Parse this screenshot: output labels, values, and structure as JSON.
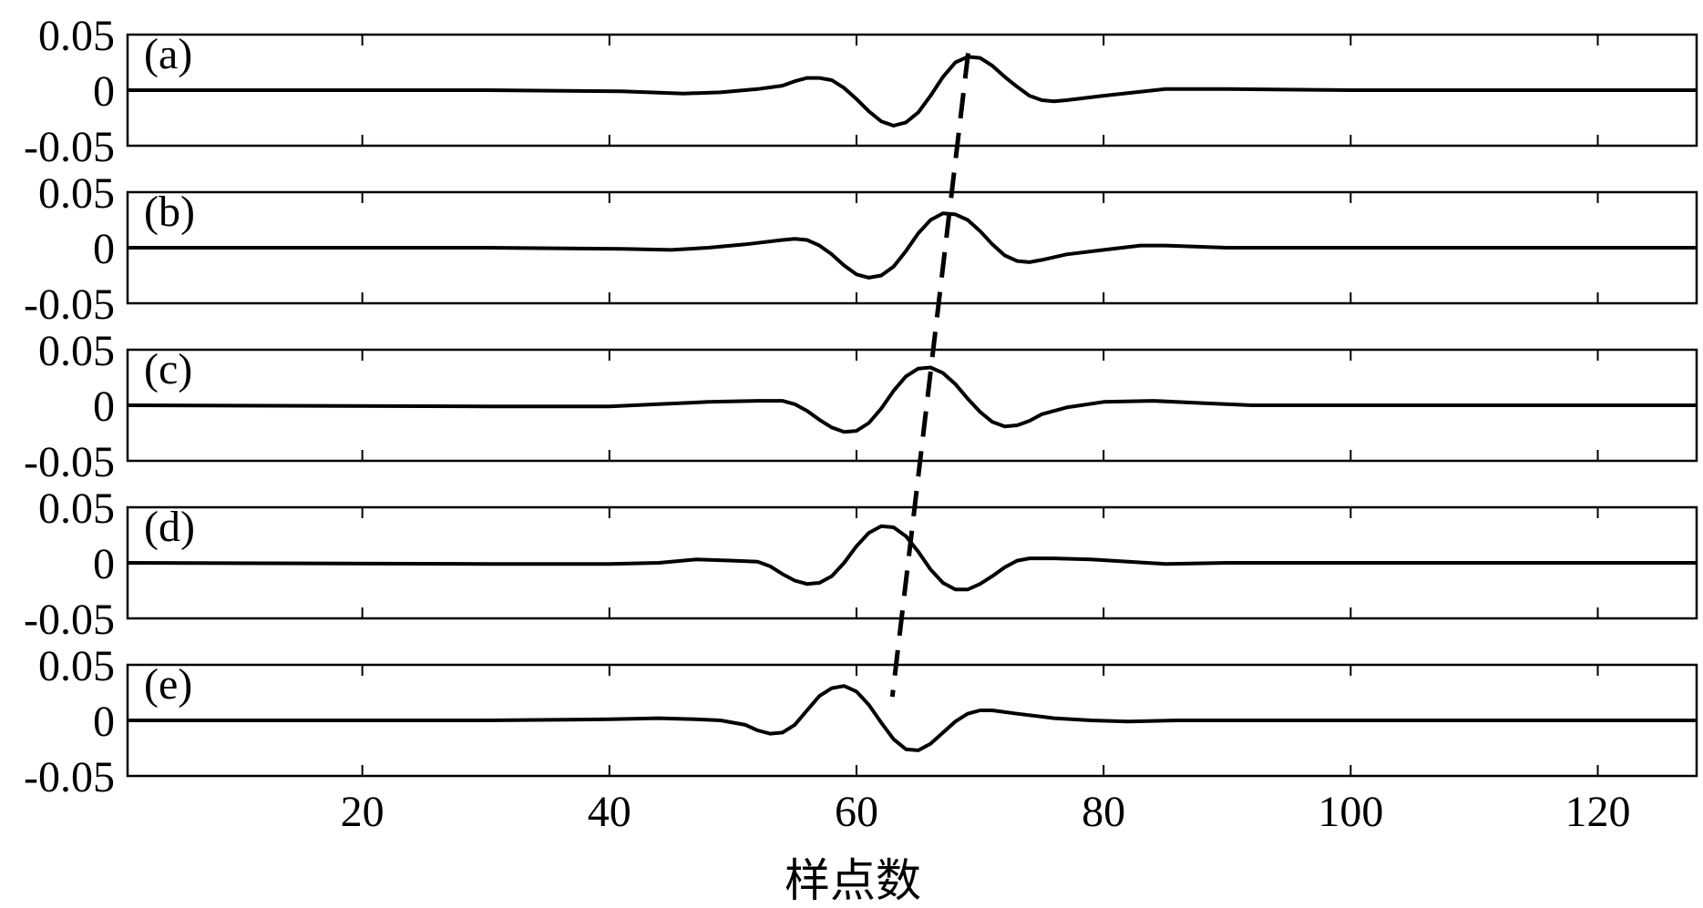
{
  "chart_data": {
    "type": "line",
    "xlabel": "样点数",
    "xlim": [
      1,
      128
    ],
    "xticks": [
      20,
      40,
      60,
      80,
      100,
      120
    ],
    "ylim": [
      -0.05,
      0.05
    ],
    "yticks": [
      0.05,
      0,
      -0.05
    ],
    "ytick_labels": [
      "0.05",
      "0",
      "-0.05"
    ],
    "grid": false,
    "line_color": "#000000",
    "panels": [
      {
        "label": "(a)",
        "peak_x": 69,
        "points": [
          [
            1,
            0
          ],
          [
            30,
            0
          ],
          [
            41,
            -0.001
          ],
          [
            46,
            -0.003
          ],
          [
            49,
            -0.002
          ],
          [
            52,
            0.001
          ],
          [
            54,
            0.004
          ],
          [
            55,
            0.008
          ],
          [
            56,
            0.011
          ],
          [
            57,
            0.011
          ],
          [
            58,
            0.009
          ],
          [
            59,
            0.002
          ],
          [
            60,
            -0.008
          ],
          [
            61,
            -0.019
          ],
          [
            62,
            -0.028
          ],
          [
            63,
            -0.032
          ],
          [
            64,
            -0.029
          ],
          [
            65,
            -0.02
          ],
          [
            66,
            -0.005
          ],
          [
            67,
            0.012
          ],
          [
            68,
            0.025
          ],
          [
            69,
            0.03
          ],
          [
            70,
            0.029
          ],
          [
            71,
            0.022
          ],
          [
            72,
            0.012
          ],
          [
            73,
            0.003
          ],
          [
            74,
            -0.005
          ],
          [
            75,
            -0.009
          ],
          [
            76,
            -0.01
          ],
          [
            77,
            -0.009
          ],
          [
            80,
            -0.005
          ],
          [
            85,
            0.001
          ],
          [
            90,
            0.001
          ],
          [
            100,
            0
          ],
          [
            128,
            0
          ]
        ]
      },
      {
        "label": "(b)",
        "peak_x": 67.5,
        "points": [
          [
            1,
            0
          ],
          [
            30,
            0
          ],
          [
            41,
            -0.001
          ],
          [
            45,
            -0.002
          ],
          [
            48,
            0
          ],
          [
            51,
            0.003
          ],
          [
            54,
            0.007
          ],
          [
            55,
            0.008
          ],
          [
            56,
            0.007
          ],
          [
            57,
            0.002
          ],
          [
            58,
            -0.006
          ],
          [
            59,
            -0.016
          ],
          [
            60,
            -0.024
          ],
          [
            61,
            -0.027
          ],
          [
            62,
            -0.025
          ],
          [
            63,
            -0.017
          ],
          [
            64,
            -0.003
          ],
          [
            65,
            0.013
          ],
          [
            66,
            0.025
          ],
          [
            67,
            0.031
          ],
          [
            68,
            0.03
          ],
          [
            69,
            0.025
          ],
          [
            70,
            0.015
          ],
          [
            71,
            0.003
          ],
          [
            72,
            -0.007
          ],
          [
            73,
            -0.012
          ],
          [
            74,
            -0.013
          ],
          [
            75,
            -0.011
          ],
          [
            77,
            -0.006
          ],
          [
            80,
            -0.002
          ],
          [
            83,
            0.002
          ],
          [
            85,
            0.002
          ],
          [
            90,
            0
          ],
          [
            128,
            0
          ]
        ]
      },
      {
        "label": "(c)",
        "peak_x": 66,
        "points": [
          [
            1,
            0
          ],
          [
            30,
            -0.001
          ],
          [
            40,
            -0.001
          ],
          [
            44,
            0.001
          ],
          [
            48,
            0.003
          ],
          [
            52,
            0.004
          ],
          [
            54,
            0.004
          ],
          [
            55,
            0.001
          ],
          [
            56,
            -0.005
          ],
          [
            57,
            -0.013
          ],
          [
            58,
            -0.02
          ],
          [
            59,
            -0.024
          ],
          [
            60,
            -0.023
          ],
          [
            61,
            -0.016
          ],
          [
            62,
            -0.003
          ],
          [
            63,
            0.013
          ],
          [
            64,
            0.026
          ],
          [
            65,
            0.033
          ],
          [
            66,
            0.034
          ],
          [
            67,
            0.029
          ],
          [
            68,
            0.019
          ],
          [
            69,
            0.006
          ],
          [
            70,
            -0.006
          ],
          [
            71,
            -0.015
          ],
          [
            72,
            -0.019
          ],
          [
            73,
            -0.018
          ],
          [
            74,
            -0.014
          ],
          [
            75,
            -0.008
          ],
          [
            77,
            -0.002
          ],
          [
            80,
            0.003
          ],
          [
            84,
            0.004
          ],
          [
            88,
            0.002
          ],
          [
            92,
            0
          ],
          [
            128,
            0
          ]
        ]
      },
      {
        "label": "(d)",
        "peak_x": 64.5,
        "points": [
          [
            1,
            0
          ],
          [
            30,
            -0.001
          ],
          [
            40,
            -0.001
          ],
          [
            44,
            0
          ],
          [
            47,
            0.003
          ],
          [
            50,
            0.002
          ],
          [
            52,
            0.001
          ],
          [
            53,
            -0.003
          ],
          [
            54,
            -0.01
          ],
          [
            55,
            -0.016
          ],
          [
            56,
            -0.019
          ],
          [
            57,
            -0.018
          ],
          [
            58,
            -0.012
          ],
          [
            59,
            0
          ],
          [
            60,
            0.015
          ],
          [
            61,
            0.027
          ],
          [
            62,
            0.033
          ],
          [
            63,
            0.032
          ],
          [
            64,
            0.024
          ],
          [
            65,
            0.01
          ],
          [
            66,
            -0.006
          ],
          [
            67,
            -0.018
          ],
          [
            68,
            -0.024
          ],
          [
            69,
            -0.024
          ],
          [
            70,
            -0.019
          ],
          [
            71,
            -0.012
          ],
          [
            72,
            -0.004
          ],
          [
            73,
            0.002
          ],
          [
            74,
            0.004
          ],
          [
            76,
            0.004
          ],
          [
            79,
            0.003
          ],
          [
            82,
            0.001
          ],
          [
            85,
            -0.001
          ],
          [
            90,
            0
          ],
          [
            128,
            0
          ]
        ]
      },
      {
        "label": "(e)",
        "peak_x": 63,
        "points": [
          [
            1,
            0
          ],
          [
            30,
            0
          ],
          [
            40,
            0.001
          ],
          [
            44,
            0.002
          ],
          [
            47,
            0.001
          ],
          [
            49,
            0
          ],
          [
            51,
            -0.004
          ],
          [
            52,
            -0.009
          ],
          [
            53,
            -0.012
          ],
          [
            54,
            -0.011
          ],
          [
            55,
            -0.004
          ],
          [
            56,
            0.009
          ],
          [
            57,
            0.022
          ],
          [
            58,
            0.029
          ],
          [
            59,
            0.031
          ],
          [
            60,
            0.026
          ],
          [
            61,
            0.014
          ],
          [
            62,
            -0.002
          ],
          [
            63,
            -0.017
          ],
          [
            64,
            -0.026
          ],
          [
            65,
            -0.027
          ],
          [
            66,
            -0.021
          ],
          [
            67,
            -0.011
          ],
          [
            68,
            -0.001
          ],
          [
            69,
            0.006
          ],
          [
            70,
            0.009
          ],
          [
            71,
            0.009
          ],
          [
            73,
            0.006
          ],
          [
            76,
            0.002
          ],
          [
            79,
            0
          ],
          [
            82,
            -0.001
          ],
          [
            86,
            0
          ],
          [
            90,
            0
          ],
          [
            128,
            0
          ]
        ]
      }
    ]
  }
}
